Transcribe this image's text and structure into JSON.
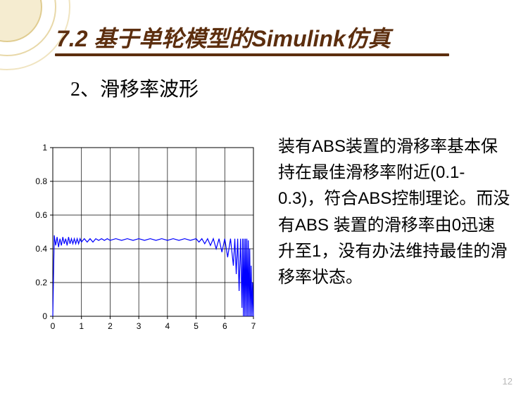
{
  "slide": {
    "title": "7.2  基于单轮模型的Simulink仿真",
    "subtitle": "2、滑移率波形",
    "page_number": "12",
    "title_color": "#5c2e0e",
    "underline_color": "#5c2e0e"
  },
  "description": {
    "text": "装有ABS装置的滑移率基本保持在最佳滑移率附近(0.1-0.3)，符合ABS控制理论。而没有ABS 装置的滑移率由0迅速升至1，没有办法维持最佳的滑移率状态。",
    "fontsize": 24,
    "color": "#000000"
  },
  "chart": {
    "type": "line",
    "xlim": [
      0,
      7
    ],
    "ylim": [
      0,
      1
    ],
    "xticks": [
      0,
      1,
      2,
      3,
      4,
      5,
      6,
      7
    ],
    "yticks": [
      0,
      0.2,
      0.4,
      0.6,
      0.8,
      1
    ],
    "line_color": "#0000ff",
    "line_width": 1.2,
    "grid_color": "#000000",
    "background_color": "#ffffff",
    "tick_fontsize": 12,
    "tick_color": "#000000",
    "data_points": [
      [
        0,
        0
      ],
      [
        0.05,
        0.48
      ],
      [
        0.1,
        0.42
      ],
      [
        0.15,
        0.47
      ],
      [
        0.2,
        0.41
      ],
      [
        0.25,
        0.46
      ],
      [
        0.3,
        0.42
      ],
      [
        0.35,
        0.47
      ],
      [
        0.4,
        0.43
      ],
      [
        0.45,
        0.46
      ],
      [
        0.5,
        0.42
      ],
      [
        0.55,
        0.47
      ],
      [
        0.6,
        0.43
      ],
      [
        0.65,
        0.46
      ],
      [
        0.7,
        0.43
      ],
      [
        0.75,
        0.46
      ],
      [
        0.8,
        0.43
      ],
      [
        0.85,
        0.46
      ],
      [
        0.9,
        0.43
      ],
      [
        0.95,
        0.46
      ],
      [
        1.0,
        0.44
      ],
      [
        1.1,
        0.46
      ],
      [
        1.2,
        0.44
      ],
      [
        1.3,
        0.46
      ],
      [
        1.4,
        0.44
      ],
      [
        1.5,
        0.46
      ],
      [
        1.6,
        0.45
      ],
      [
        1.7,
        0.46
      ],
      [
        1.8,
        0.45
      ],
      [
        1.9,
        0.46
      ],
      [
        2.0,
        0.45
      ],
      [
        2.2,
        0.46
      ],
      [
        2.4,
        0.45
      ],
      [
        2.6,
        0.46
      ],
      [
        2.8,
        0.45
      ],
      [
        3.0,
        0.46
      ],
      [
        3.2,
        0.45
      ],
      [
        3.4,
        0.46
      ],
      [
        3.6,
        0.45
      ],
      [
        3.8,
        0.46
      ],
      [
        4.0,
        0.45
      ],
      [
        4.2,
        0.46
      ],
      [
        4.4,
        0.45
      ],
      [
        4.6,
        0.46
      ],
      [
        4.8,
        0.45
      ],
      [
        5.0,
        0.46
      ],
      [
        5.1,
        0.44
      ],
      [
        5.2,
        0.46
      ],
      [
        5.3,
        0.43
      ],
      [
        5.4,
        0.46
      ],
      [
        5.5,
        0.42
      ],
      [
        5.6,
        0.46
      ],
      [
        5.7,
        0.4
      ],
      [
        5.8,
        0.46
      ],
      [
        5.9,
        0.38
      ],
      [
        6.0,
        0.46
      ],
      [
        6.1,
        0.35
      ],
      [
        6.2,
        0.46
      ],
      [
        6.3,
        0.3
      ],
      [
        6.35,
        0.46
      ],
      [
        6.4,
        0.25
      ],
      [
        6.45,
        0.46
      ],
      [
        6.5,
        0.15
      ],
      [
        6.55,
        0.46
      ],
      [
        6.6,
        0.05
      ],
      [
        6.62,
        0.46
      ],
      [
        6.65,
        0
      ],
      [
        6.67,
        0.46
      ],
      [
        6.7,
        0
      ],
      [
        6.72,
        0.46
      ],
      [
        6.75,
        0
      ],
      [
        6.77,
        0.46
      ],
      [
        6.8,
        0
      ],
      [
        6.82,
        0.45
      ],
      [
        6.85,
        0
      ],
      [
        6.87,
        0.4
      ],
      [
        6.9,
        0
      ],
      [
        6.92,
        0.3
      ],
      [
        6.95,
        0
      ],
      [
        6.97,
        0.2
      ],
      [
        7.0,
        0
      ]
    ]
  }
}
